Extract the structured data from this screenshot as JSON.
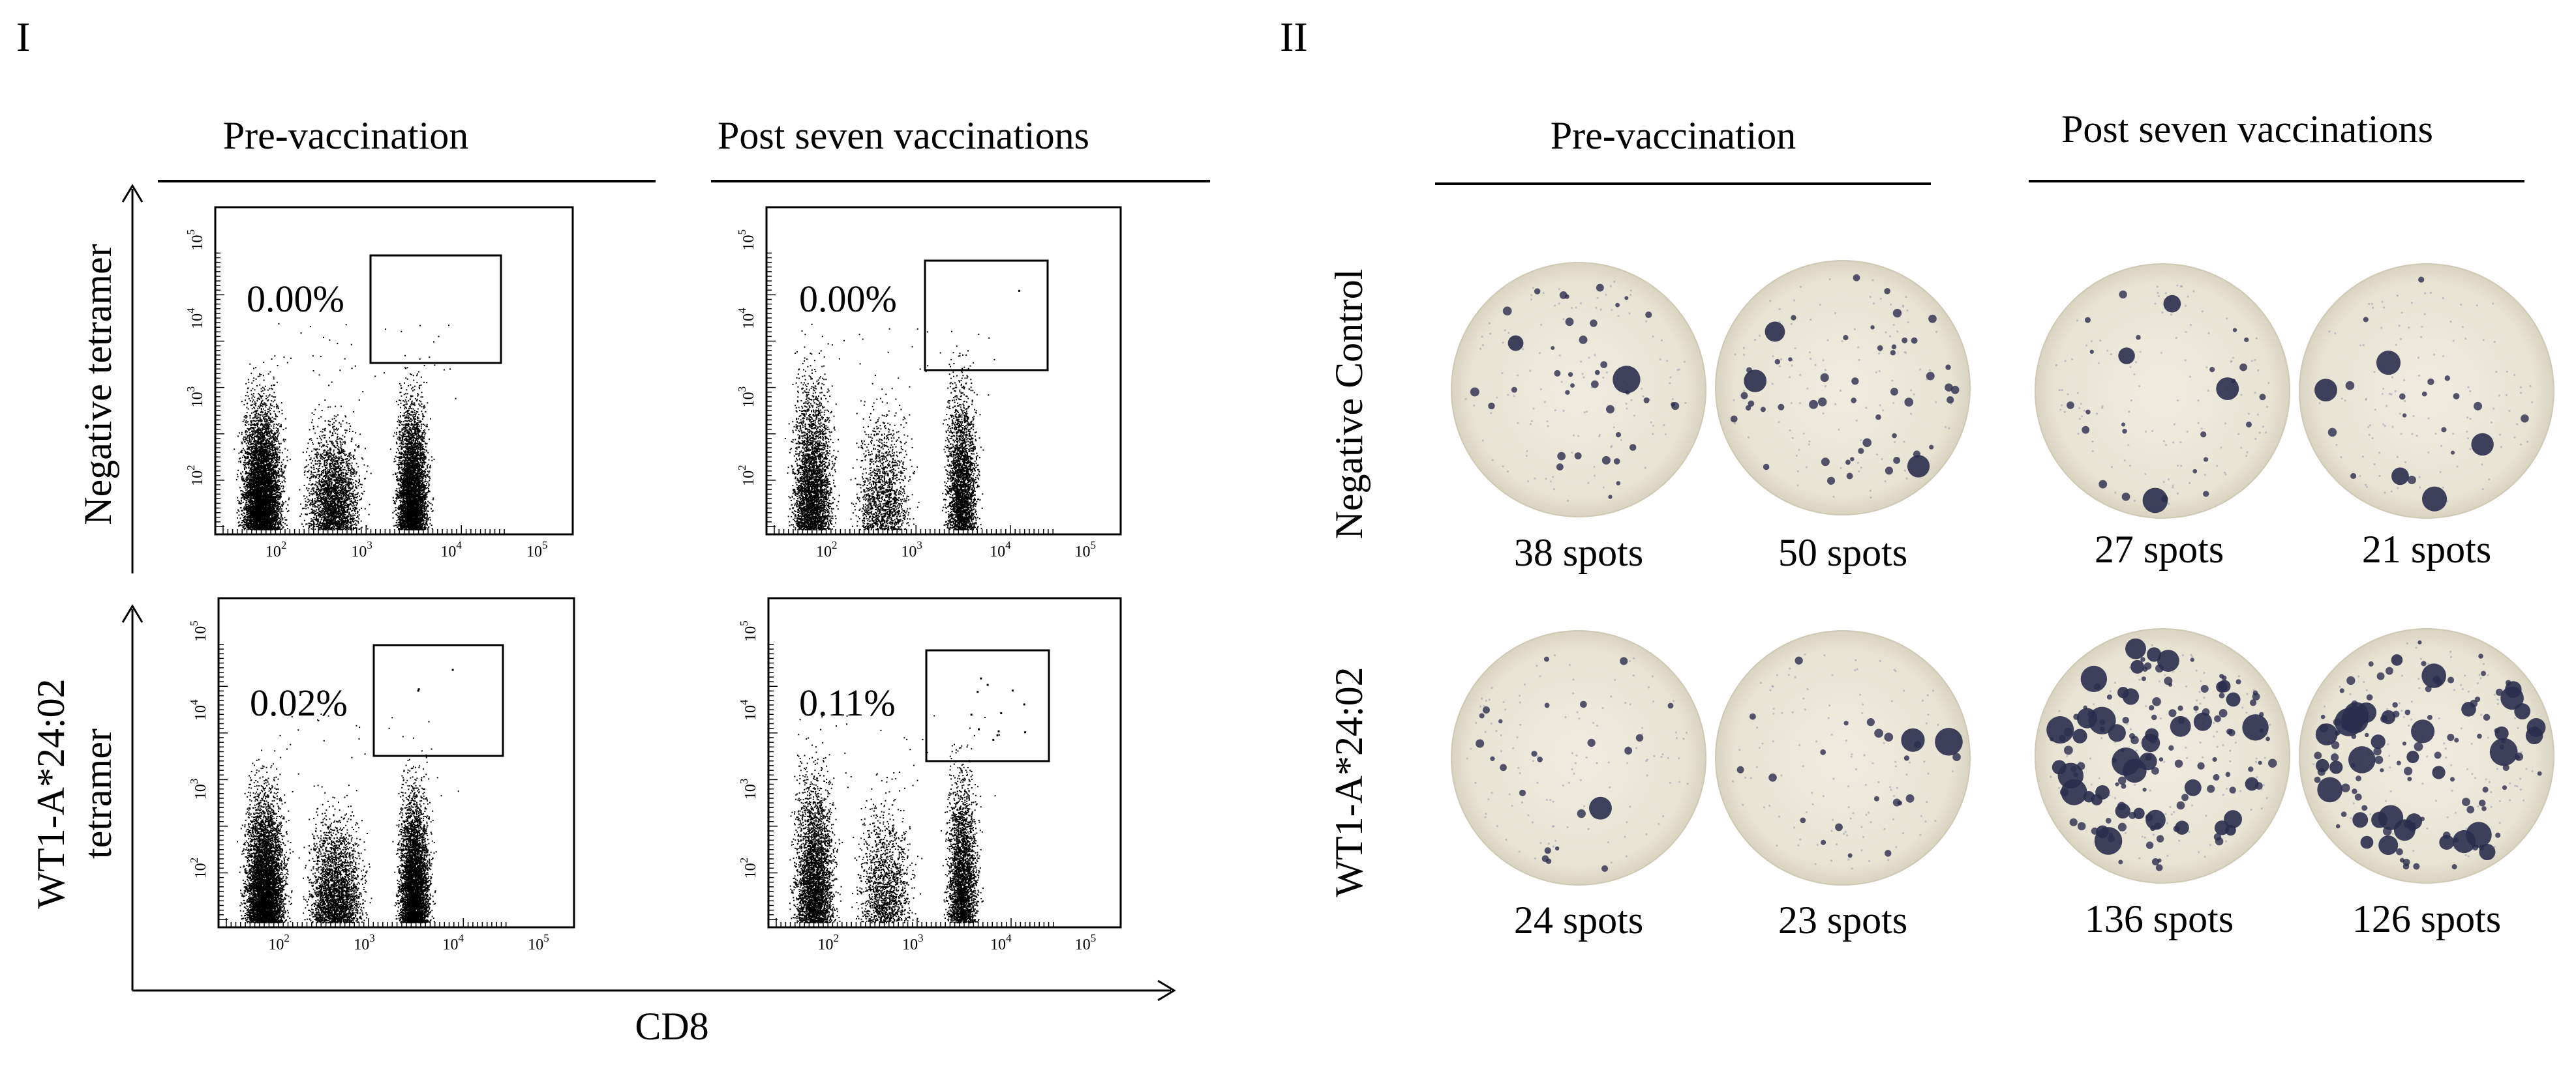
{
  "panel_I": {
    "label": "I",
    "column_headers": [
      "Pre-vaccination",
      "Post seven vaccinations"
    ],
    "row_labels": {
      "negative": "Negative tetramer",
      "wt1_line1": "WT1-A*24:02",
      "wt1_line2": "tetramer"
    },
    "x_axis_label": "CD8",
    "plot_ticks": {
      "x": [
        "10",
        "10",
        "10",
        "10"
      ],
      "x_exp": [
        "2",
        "3",
        "4",
        "5"
      ],
      "y": [
        "10",
        "10",
        "10",
        "10"
      ],
      "y_exp": [
        "2",
        "3",
        "4",
        "5"
      ]
    },
    "gate_percentages": {
      "neg_pre": "0.00%",
      "neg_post": "0.00%",
      "wt1_pre": "0.02%",
      "wt1_post": "0.11%"
    }
  },
  "panel_II": {
    "label": "II",
    "column_headers": [
      "Pre-vaccination",
      "Post seven vaccinations"
    ],
    "row_labels": {
      "negative": "Negative Control",
      "wt1": "WT1-A*24:02"
    },
    "well_counts": {
      "neg_pre_1": "38 spots",
      "neg_pre_2": "50 spots",
      "neg_post_1": "27 spots",
      "neg_post_2": "21 spots",
      "wt1_pre_1": "24 spots",
      "wt1_pre_2": "23 spots",
      "wt1_post_1": "136 spots",
      "wt1_post_2": "126 spots"
    }
  },
  "colors": {
    "well_fill": "#ebe7d8",
    "spot": "#2b2d4e",
    "ink": "#000000"
  }
}
